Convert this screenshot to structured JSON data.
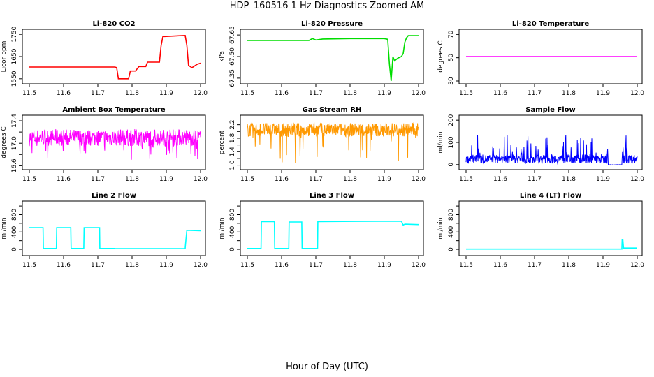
{
  "page": {
    "title": "HDP_160516  1 Hz Diagnostics Zoomed AM",
    "xaxis_title": "Hour of Day (UTC)"
  },
  "chart_data": [
    {
      "type": "line",
      "title": "Li-820 CO2",
      "ylabel": "Licor ppm",
      "color": "#ff0000",
      "xlim": [
        11.5,
        12.0
      ],
      "ylim": [
        1540,
        1760
      ],
      "xticks": [
        "11.5",
        "11.6",
        "11.7",
        "11.8",
        "11.9",
        "12.0"
      ],
      "yticks": [
        1550,
        1650,
        1750
      ],
      "ytick_labels": [
        "1550",
        "1650",
        "1750"
      ],
      "x": [
        11.5,
        11.75,
        11.755,
        11.76,
        11.79,
        11.795,
        11.81,
        11.82,
        11.84,
        11.845,
        11.88,
        11.885,
        11.89,
        11.955,
        11.96,
        11.965,
        11.975,
        11.99,
        12.0
      ],
      "y": [
        1603,
        1603,
        1600,
        1550,
        1550,
        1585,
        1585,
        1605,
        1605,
        1625,
        1625,
        1700,
        1740,
        1745,
        1700,
        1610,
        1600,
        1615,
        1620
      ]
    },
    {
      "type": "line",
      "title": "Li-820 Pressure",
      "ylabel": "kPa",
      "color": "#00dd00",
      "xlim": [
        11.5,
        12.0
      ],
      "ylim": [
        67.33,
        67.67
      ],
      "xticks": [
        "11.5",
        "11.6",
        "11.7",
        "11.8",
        "11.9",
        "12.0"
      ],
      "yticks": [
        67.35,
        67.5,
        67.65
      ],
      "ytick_labels": [
        "67.35",
        "67.50",
        "67.65"
      ],
      "extra_y_labels": [
        "67.65"
      ],
      "x": [
        11.5,
        11.68,
        11.69,
        11.7,
        11.72,
        11.8,
        11.9,
        11.91,
        11.915,
        11.92,
        11.925,
        11.93,
        11.94,
        11.95,
        11.955,
        11.96,
        11.965,
        11.97,
        12.0
      ],
      "y": [
        67.612,
        67.612,
        67.625,
        67.615,
        67.622,
        67.625,
        67.625,
        67.62,
        67.45,
        67.33,
        67.5,
        67.47,
        67.49,
        67.5,
        67.52,
        67.6,
        67.63,
        67.645,
        67.645
      ]
    },
    {
      "type": "line",
      "title": "Li-820 Temperature",
      "ylabel": "degrees C",
      "color": "#ff00ff",
      "xlim": [
        11.5,
        12.0
      ],
      "ylim": [
        30,
        72
      ],
      "xticks": [
        "11.5",
        "11.6",
        "11.7",
        "11.8",
        "11.9",
        "12.0"
      ],
      "yticks": [
        30,
        50,
        70
      ],
      "ytick_labels": [
        "30",
        "50",
        "70"
      ],
      "x": [
        11.5,
        12.0
      ],
      "y": [
        51,
        51
      ]
    },
    {
      "type": "line",
      "title": "Ambient Box Temperature",
      "ylabel": "degrees C",
      "color": "#ff00ff",
      "xlim": [
        11.5,
        12.0
      ],
      "ylim": [
        16.58,
        17.45
      ],
      "xticks": [
        "11.5",
        "11.6",
        "11.7",
        "11.8",
        "11.9",
        "12.0"
      ],
      "yticks": [
        16.6,
        16.8,
        17.0,
        17.2,
        17.4
      ],
      "ytick_labels": [
        "16.6",
        "",
        "17.0",
        "",
        "17.4"
      ],
      "noise": {
        "base": 17.1,
        "amp": 0.15,
        "spikes_down": 0.4
      },
      "x": [
        11.5,
        12.0
      ],
      "y": [
        17.1,
        17.1
      ]
    },
    {
      "type": "line",
      "title": "Gas Stream RH",
      "ylabel": "percent",
      "color": "#ff9900",
      "xlim": [
        11.5,
        12.0
      ],
      "ylim": [
        0.95,
        2.4
      ],
      "xticks": [
        "11.5",
        "11.6",
        "11.7",
        "11.8",
        "11.9",
        "12.0"
      ],
      "yticks": [
        1.0,
        1.2,
        1.4,
        1.6,
        1.8,
        2.0,
        2.2
      ],
      "ytick_labels": [
        "1.0",
        "",
        "1.4",
        "",
        "1.8",
        "",
        "2.2"
      ],
      "noise": {
        "base": 2.05,
        "amp": 0.2,
        "spikes_down": 1.0
      },
      "x": [
        11.5,
        12.0
      ],
      "y": [
        2.05,
        2.05
      ]
    },
    {
      "type": "line",
      "title": "Sample Flow",
      "ylabel": "ml/min",
      "color": "#0000ff",
      "xlim": [
        11.5,
        12.0
      ],
      "ylim": [
        -10,
        210
      ],
      "xticks": [
        "11.5",
        "11.6",
        "11.7",
        "11.8",
        "11.9",
        "12.0"
      ],
      "yticks": [
        0,
        100,
        200
      ],
      "ytick_labels": [
        "0",
        "100",
        "200"
      ],
      "noise": {
        "base": 25,
        "amp": 20,
        "spikes_up": 110,
        "gap": [
          11.915,
          11.955
        ]
      },
      "x": [
        11.5,
        12.0
      ],
      "y": [
        25,
        25
      ]
    },
    {
      "type": "line",
      "title": "Line 2 Flow",
      "ylabel": "ml/min",
      "color": "#00ffff",
      "xlim": [
        11.5,
        12.0
      ],
      "ylim": [
        -80,
        1050
      ],
      "xticks": [
        "11.5",
        "11.6",
        "11.7",
        "11.8",
        "11.9",
        "12.0"
      ],
      "yticks": [
        0,
        200,
        400,
        600,
        800,
        1000
      ],
      "ytick_labels": [
        "0",
        "",
        "400",
        "",
        "800",
        ""
      ],
      "x": [
        11.5,
        11.54,
        11.541,
        11.579,
        11.58,
        11.621,
        11.622,
        11.659,
        11.66,
        11.705,
        11.706,
        11.75,
        11.751,
        11.955,
        11.956,
        11.96,
        12.0
      ],
      "y": [
        500,
        500,
        20,
        20,
        500,
        500,
        20,
        20,
        500,
        500,
        20,
        20,
        15,
        15,
        100,
        440,
        430
      ]
    },
    {
      "type": "line",
      "title": "Line 3 Flow",
      "ylabel": "ml/min",
      "color": "#00ffff",
      "xlim": [
        11.5,
        12.0
      ],
      "ylim": [
        -80,
        1050
      ],
      "xticks": [
        "11.5",
        "11.6",
        "11.7",
        "11.8",
        "11.9",
        "12.0"
      ],
      "yticks": [
        0,
        200,
        400,
        600,
        800,
        1000
      ],
      "ytick_labels": [
        "0",
        "",
        "400",
        "",
        "800",
        ""
      ],
      "x": [
        11.5,
        11.54,
        11.541,
        11.579,
        11.58,
        11.621,
        11.622,
        11.659,
        11.66,
        11.705,
        11.706,
        11.95,
        11.955,
        11.96,
        12.0
      ],
      "y": [
        20,
        20,
        640,
        640,
        20,
        20,
        630,
        630,
        20,
        20,
        640,
        650,
        560,
        580,
        570
      ]
    },
    {
      "type": "line",
      "title": "Line 4 (LT) Flow",
      "ylabel": "ml/min",
      "color": "#00ffff",
      "xlim": [
        11.5,
        12.0
      ],
      "ylim": [
        -80,
        1050
      ],
      "xticks": [
        "11.5",
        "11.6",
        "11.7",
        "11.8",
        "11.9",
        "12.0"
      ],
      "yticks": [
        0,
        200,
        400,
        600,
        800,
        1000
      ],
      "ytick_labels": [
        "0",
        "",
        "400",
        "",
        "800",
        ""
      ],
      "x": [
        11.5,
        11.955,
        11.956,
        11.958,
        11.96,
        12.0
      ],
      "y": [
        5,
        5,
        220,
        220,
        30,
        30
      ]
    }
  ]
}
